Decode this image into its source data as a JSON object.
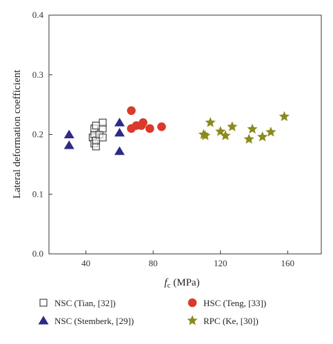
{
  "chart_data": {
    "type": "scatter",
    "title": "",
    "xlabel": "f",
    "xlabel_sub": "c",
    "xlabel_unit": " (MPa)",
    "ylabel": "Lateral deformation coefficient",
    "xlim": [
      18,
      180
    ],
    "ylim": [
      0.0,
      0.4
    ],
    "xticks": [
      40,
      80,
      120,
      160
    ],
    "yticks": [
      0.0,
      0.1,
      0.2,
      0.3,
      0.4
    ],
    "ytick_labels": [
      "0.0",
      "0.1",
      "0.2",
      "0.3",
      "0.4"
    ],
    "grid": false,
    "legend_position": "bottom",
    "series": [
      {
        "name": "NSC (Tian, [32])",
        "marker": "square-open",
        "color": "#333333",
        "points": [
          [
            44,
            0.195
          ],
          [
            45,
            0.185
          ],
          [
            45,
            0.2
          ],
          [
            45,
            0.21
          ],
          [
            46,
            0.18
          ],
          [
            46,
            0.19
          ],
          [
            46,
            0.215
          ],
          [
            48,
            0.2
          ],
          [
            50,
            0.195
          ],
          [
            50,
            0.21
          ],
          [
            50,
            0.22
          ]
        ]
      },
      {
        "name": "HSC (Teng, [33])",
        "marker": "circle",
        "color": "#d93a2b",
        "points": [
          [
            67,
            0.21
          ],
          [
            67,
            0.24
          ],
          [
            70,
            0.215
          ],
          [
            73,
            0.215
          ],
          [
            74,
            0.22
          ],
          [
            78,
            0.21
          ],
          [
            85,
            0.213
          ]
        ]
      },
      {
        "name": "NSC (Stemberk, [29])",
        "marker": "triangle",
        "color": "#2e2a86",
        "points": [
          [
            30,
            0.2
          ],
          [
            30,
            0.182
          ],
          [
            60,
            0.22
          ],
          [
            60,
            0.203
          ],
          [
            60,
            0.172
          ]
        ]
      },
      {
        "name": "RPC (Ke, [30])",
        "marker": "star",
        "color": "#8a8a1e",
        "points": [
          [
            110,
            0.2
          ],
          [
            111,
            0.198
          ],
          [
            114,
            0.22
          ],
          [
            120,
            0.205
          ],
          [
            123,
            0.198
          ],
          [
            127,
            0.213
          ],
          [
            137,
            0.192
          ],
          [
            139,
            0.209
          ],
          [
            145,
            0.196
          ],
          [
            150,
            0.204
          ],
          [
            158,
            0.23
          ]
        ]
      }
    ],
    "legend_order": [
      0,
      1,
      2,
      3
    ]
  }
}
